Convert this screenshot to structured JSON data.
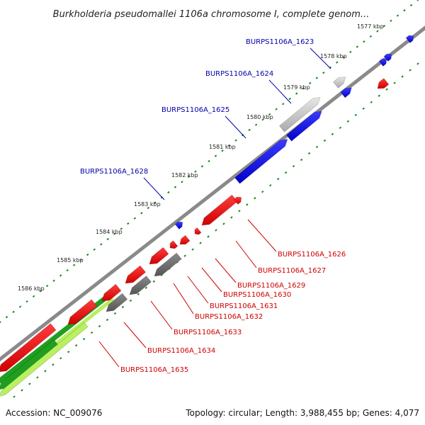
{
  "title": "Burkholderia pseudomallei 1106a chromosome I, complete genom...",
  "footer": {
    "accession": "Accession: NC_009076",
    "summary": "Topology: circular; Length: 3,988,455 bp; Genes: 4,077"
  },
  "ticks": [
    {
      "label": "1577 kbp"
    },
    {
      "label": "1578 kbp"
    },
    {
      "label": "1579 kbp"
    },
    {
      "label": "1580 kbp"
    },
    {
      "label": "1581 kbp"
    },
    {
      "label": "1582 kbp"
    },
    {
      "label": "1583 kbp"
    },
    {
      "label": "1584 kbp"
    },
    {
      "label": "1585 kbp"
    },
    {
      "label": "1586 kbp"
    }
  ],
  "genes_top": [
    {
      "name": "BURPS1106A_1623"
    },
    {
      "name": "BURPS1106A_1624"
    },
    {
      "name": "BURPS1106A_1625"
    },
    {
      "name": "BURPS1106A_1628"
    }
  ],
  "genes_bottom": [
    {
      "name": "BURPS1106A_1626"
    },
    {
      "name": "BURPS1106A_1627"
    },
    {
      "name": "BURPS1106A_1629"
    },
    {
      "name": "BURPS1106A_1630"
    },
    {
      "name": "BURPS1106A_1631"
    },
    {
      "name": "BURPS1106A_1632"
    },
    {
      "name": "BURPS1106A_1633"
    },
    {
      "name": "BURPS1106A_1634"
    },
    {
      "name": "BURPS1106A_1635"
    }
  ],
  "colors": {
    "backbone": "#8a8a8a",
    "forward": "#0000ee",
    "reverse": "#ee0000",
    "grey_gene": "#666666",
    "light_gene": "#c8c8c8",
    "tick": "#1a8a1a",
    "green_band": "#1f9e1f",
    "lime_band": "#b8f060",
    "top_label": "#0000aa",
    "bottom_label": "#cc0000"
  }
}
